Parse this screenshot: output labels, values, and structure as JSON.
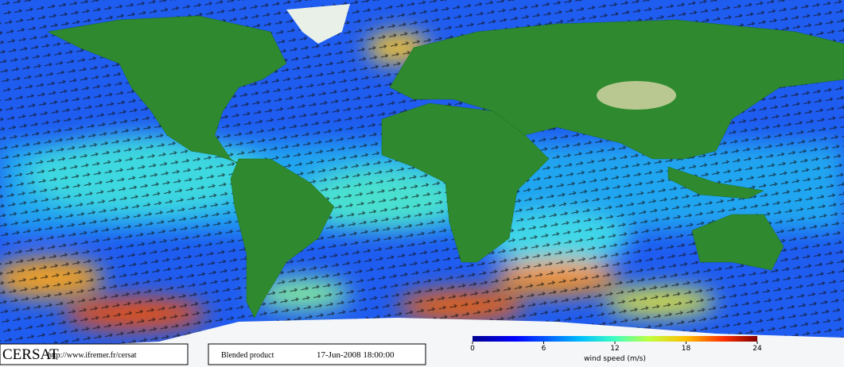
{
  "footer": {
    "logo": "CERSAT",
    "url": "http://www.ifremer.fr/cersat",
    "product": "Blended product",
    "datetime": "17-Jun-2008 18:00:00"
  },
  "colorbar": {
    "range": [
      0,
      24
    ],
    "ticks": [
      0,
      6,
      12,
      18,
      24
    ],
    "label": "wind speed (m/s)"
  }
}
